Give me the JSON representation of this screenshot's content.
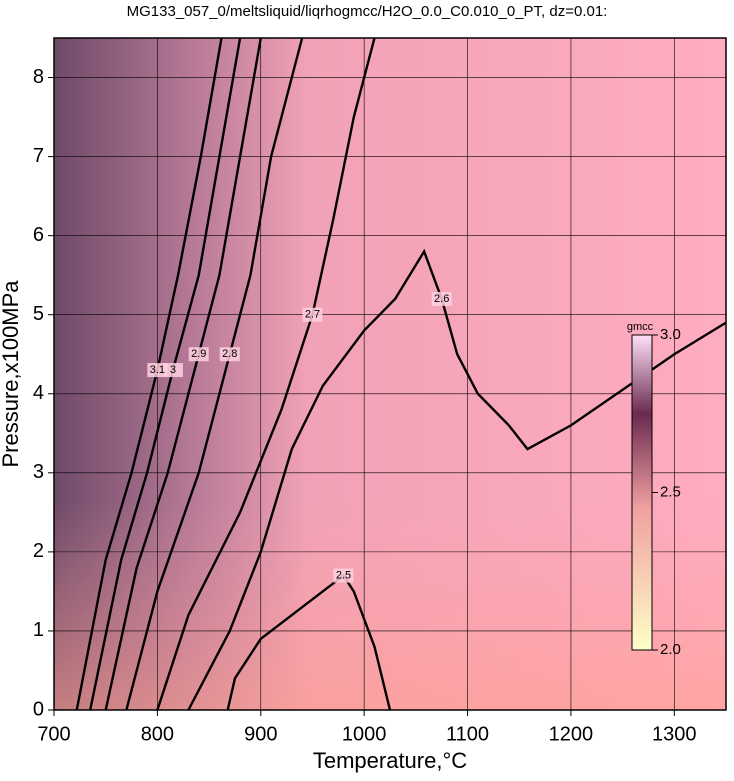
{
  "chart_data": {
    "type": "contour",
    "title": "MG133_057_0/meltsliquid/liqrhogmcc/H2O_0.0_C0.010_0_PT, dz=0.01:",
    "x_label": "Temperature,°C",
    "y_label": "Pressure,x100MPa",
    "xlim": [
      700,
      1350
    ],
    "ylim": [
      0,
      8.5
    ],
    "xticks": [
      700,
      800,
      900,
      1000,
      1100,
      1200,
      1300
    ],
    "yticks": [
      0,
      1,
      2,
      3,
      4,
      5,
      6,
      7,
      8
    ],
    "grid": true,
    "colorbar": {
      "label": "gmcc",
      "lim": [
        2.0,
        3.0
      ],
      "ticks": [
        {
          "value": 2.0,
          "label": "2.0"
        },
        {
          "value": 2.5,
          "label": "2.5"
        },
        {
          "value": 3.0,
          "label": "3.0"
        }
      ],
      "colors": [
        "#ffffc8",
        "#f0a0a0",
        "#6a2a50",
        "#ffe0f8"
      ]
    },
    "series": [
      {
        "level": 2.5,
        "x": [
          868,
          875,
          900,
          940,
          980,
          990,
          1010,
          1025
        ],
        "y": [
          0,
          0.4,
          0.9,
          1.3,
          1.7,
          1.5,
          0.8,
          0
        ]
      },
      {
        "level": 2.6,
        "x": [
          830,
          870,
          900,
          930,
          960,
          1000,
          1030,
          1058,
          1075,
          1090,
          1110,
          1140,
          1158,
          1200,
          1300,
          1350
        ],
        "y": [
          0,
          1.0,
          2.0,
          3.3,
          4.1,
          4.8,
          5.2,
          5.8,
          5.2,
          4.5,
          4.0,
          3.6,
          3.3,
          3.6,
          4.5,
          4.9
        ]
      },
      {
        "level": 2.7,
        "x": [
          800,
          830,
          880,
          920,
          950,
          970,
          990,
          1010
        ],
        "y": [
          0,
          1.2,
          2.5,
          3.8,
          5.0,
          6.2,
          7.5,
          8.5
        ]
      },
      {
        "level": 2.8,
        "x": [
          770,
          800,
          840,
          870,
          890,
          910,
          940
        ],
        "y": [
          0,
          1.5,
          3.0,
          4.5,
          5.5,
          7.0,
          8.5
        ]
      },
      {
        "level": 2.9,
        "x": [
          750,
          780,
          810,
          840,
          860,
          880,
          900
        ],
        "y": [
          0,
          1.8,
          3.0,
          4.5,
          5.5,
          7.0,
          8.5
        ]
      },
      {
        "level": 3.0,
        "x": [
          735,
          765,
          790,
          815,
          840,
          860,
          880
        ],
        "y": [
          0,
          1.9,
          3.0,
          4.3,
          5.5,
          7.0,
          8.5
        ]
      },
      {
        "level": 3.1,
        "x": [
          722,
          750,
          775,
          800,
          820,
          842,
          862
        ],
        "y": [
          0,
          1.9,
          3.0,
          4.3,
          5.5,
          7.0,
          8.5
        ]
      }
    ]
  }
}
